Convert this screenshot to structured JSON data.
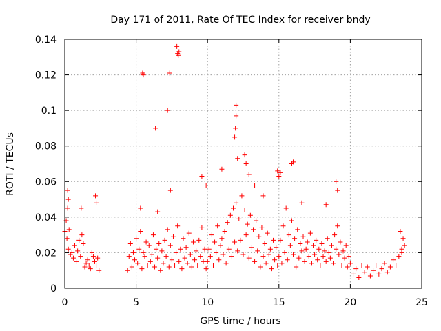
{
  "chart_data": {
    "type": "scatter",
    "title": "Day 171 of 2011, Rate Of TEC Index for receiver bndy",
    "xlabel": "GPS time / hours",
    "ylabel": "ROTI / TECUs",
    "xlim": [
      0,
      25
    ],
    "ylim": [
      0,
      0.14
    ],
    "x_ticks": [
      0,
      5,
      10,
      15,
      20,
      25
    ],
    "x_tick_labels": [
      "0",
      "5",
      "10",
      "15",
      "20",
      "25"
    ],
    "y_ticks": [
      0,
      0.02,
      0.04,
      0.06,
      0.08,
      0.1,
      0.12,
      0.14
    ],
    "y_tick_labels": [
      "0",
      "0.02",
      "0.04",
      "0.06",
      "0.08",
      "0.1",
      "0.12",
      "0.14"
    ],
    "grid": true,
    "marker": "plus",
    "color": "#ff0000",
    "series": [
      {
        "x": [
          0.0,
          0.1,
          0.15,
          0.2,
          0.25,
          0.3,
          0.4,
          0.5,
          0.6,
          0.7,
          0.8,
          0.9,
          1.0,
          1.1,
          1.2,
          1.3,
          1.4,
          1.5,
          1.6,
          1.7,
          1.8,
          1.9,
          2.0,
          2.1,
          2.2,
          2.3,
          2.4,
          0.2,
          0.25,
          1.15,
          2.15,
          2.2,
          4.4,
          4.5,
          4.6,
          4.7,
          4.8,
          4.9,
          5.0,
          5.1,
          5.2,
          5.3,
          5.4,
          5.5,
          5.6,
          5.7,
          5.8,
          5.9,
          6.0,
          6.1,
          6.2,
          6.3,
          6.4,
          6.5,
          6.6,
          6.7,
          6.8,
          6.9,
          7.0,
          7.1,
          7.2,
          7.3,
          7.4,
          7.5,
          7.6,
          7.7,
          7.8,
          7.9,
          8.0,
          8.1,
          8.2,
          8.3,
          8.4,
          8.5,
          8.6,
          8.7,
          8.8,
          8.9,
          9.0,
          9.1,
          9.2,
          9.3,
          9.4,
          9.5,
          9.6,
          9.7,
          9.8,
          9.9,
          5.45,
          5.5,
          6.35,
          7.2,
          7.35,
          7.85,
          7.9,
          7.95,
          8.0,
          9.6,
          9.9,
          5.3,
          6.5,
          7.4,
          10.0,
          10.1,
          10.2,
          10.3,
          10.4,
          10.5,
          10.6,
          10.7,
          10.8,
          10.9,
          11.0,
          11.1,
          11.2,
          11.3,
          11.4,
          11.5,
          11.6,
          11.7,
          11.8,
          11.9,
          12.0,
          12.1,
          12.2,
          12.3,
          12.4,
          12.5,
          12.6,
          12.7,
          12.8,
          12.9,
          13.0,
          13.1,
          13.2,
          13.3,
          13.4,
          13.5,
          13.6,
          13.7,
          13.8,
          13.9,
          14.0,
          14.1,
          14.2,
          14.3,
          14.4,
          14.5,
          14.6,
          14.7,
          14.8,
          14.9,
          11.0,
          11.9,
          11.95,
          12.0,
          12.0,
          12.1,
          12.6,
          12.7,
          12.9,
          13.3,
          13.9,
          15.0,
          15.1,
          15.2,
          15.3,
          15.4,
          15.5,
          15.6,
          15.7,
          15.8,
          15.9,
          16.0,
          16.1,
          16.2,
          16.3,
          16.4,
          16.5,
          16.6,
          16.7,
          16.8,
          16.9,
          17.0,
          17.1,
          17.2,
          17.3,
          17.4,
          17.5,
          17.6,
          17.7,
          17.8,
          17.9,
          18.0,
          18.1,
          18.2,
          18.3,
          18.4,
          18.5,
          18.6,
          18.7,
          18.8,
          18.9,
          19.0,
          19.1,
          19.2,
          19.3,
          19.4,
          19.5,
          19.6,
          19.7,
          19.8,
          19.9,
          14.9,
          15.0,
          15.1,
          15.9,
          16.0,
          19.0,
          19.1,
          18.3,
          16.6,
          20.0,
          20.2,
          20.4,
          20.6,
          20.8,
          21.0,
          21.2,
          21.4,
          21.6,
          21.8,
          22.0,
          22.2,
          22.4,
          22.6,
          22.8,
          23.0,
          23.2,
          23.4,
          23.6,
          23.7,
          23.8,
          23.5,
          23.6
        ],
        "y": [
          0.032,
          0.038,
          0.028,
          0.045,
          0.022,
          0.033,
          0.019,
          0.02,
          0.017,
          0.024,
          0.015,
          0.021,
          0.027,
          0.018,
          0.03,
          0.025,
          0.012,
          0.014,
          0.016,
          0.013,
          0.011,
          0.02,
          0.018,
          0.015,
          0.013,
          0.017,
          0.01,
          0.055,
          0.05,
          0.045,
          0.052,
          0.048,
          0.01,
          0.018,
          0.025,
          0.012,
          0.02,
          0.016,
          0.028,
          0.014,
          0.022,
          0.032,
          0.011,
          0.02,
          0.018,
          0.026,
          0.013,
          0.024,
          0.015,
          0.019,
          0.03,
          0.012,
          0.022,
          0.017,
          0.025,
          0.01,
          0.021,
          0.014,
          0.027,
          0.018,
          0.033,
          0.012,
          0.024,
          0.016,
          0.029,
          0.013,
          0.02,
          0.035,
          0.015,
          0.022,
          0.011,
          0.028,
          0.017,
          0.023,
          0.014,
          0.031,
          0.019,
          0.012,
          0.026,
          0.016,
          0.021,
          0.013,
          0.027,
          0.018,
          0.034,
          0.015,
          0.022,
          0.011,
          0.121,
          0.12,
          0.09,
          0.1,
          0.121,
          0.136,
          0.132,
          0.131,
          0.133,
          0.063,
          0.058,
          0.045,
          0.043,
          0.055,
          0.015,
          0.022,
          0.018,
          0.03,
          0.013,
          0.026,
          0.02,
          0.035,
          0.016,
          0.024,
          0.028,
          0.019,
          0.032,
          0.014,
          0.037,
          0.022,
          0.041,
          0.018,
          0.045,
          0.026,
          0.048,
          0.021,
          0.039,
          0.027,
          0.052,
          0.019,
          0.044,
          0.03,
          0.036,
          0.017,
          0.041,
          0.023,
          0.033,
          0.015,
          0.038,
          0.021,
          0.029,
          0.012,
          0.034,
          0.018,
          0.025,
          0.014,
          0.031,
          0.019,
          0.022,
          0.011,
          0.027,
          0.016,
          0.023,
          0.013,
          0.067,
          0.085,
          0.09,
          0.103,
          0.097,
          0.073,
          0.075,
          0.07,
          0.064,
          0.058,
          0.052,
          0.018,
          0.027,
          0.014,
          0.035,
          0.02,
          0.045,
          0.016,
          0.03,
          0.024,
          0.038,
          0.019,
          0.028,
          0.012,
          0.033,
          0.017,
          0.025,
          0.021,
          0.029,
          0.015,
          0.022,
          0.026,
          0.018,
          0.031,
          0.014,
          0.024,
          0.019,
          0.027,
          0.016,
          0.022,
          0.013,
          0.025,
          0.018,
          0.021,
          0.015,
          0.028,
          0.02,
          0.017,
          0.024,
          0.014,
          0.03,
          0.022,
          0.035,
          0.019,
          0.026,
          0.013,
          0.021,
          0.017,
          0.024,
          0.012,
          0.018,
          0.066,
          0.063,
          0.065,
          0.07,
          0.071,
          0.06,
          0.055,
          0.047,
          0.048,
          0.014,
          0.008,
          0.011,
          0.006,
          0.013,
          0.009,
          0.012,
          0.007,
          0.01,
          0.013,
          0.008,
          0.011,
          0.014,
          0.009,
          0.012,
          0.016,
          0.013,
          0.018,
          0.022,
          0.028,
          0.024,
          0.032,
          0.02
        ]
      }
    ]
  }
}
